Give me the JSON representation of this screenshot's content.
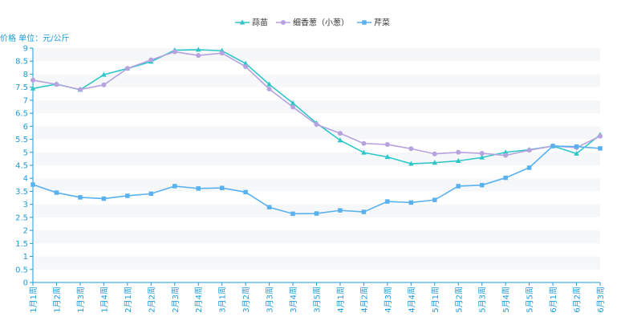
{
  "chart_data": {
    "type": "line",
    "ylabel": "价格 单位：元/公斤",
    "ylim": [
      0,
      9
    ],
    "ytick_step": 0.5,
    "grid": "horizontal-bands",
    "legend_position": "top-center",
    "categories": [
      "1月1周",
      "1月2周",
      "1月3周",
      "1月4周",
      "2月1周",
      "2月2周",
      "2月3周",
      "2月4周",
      "3月1周",
      "3月2周",
      "3月3周",
      "3月4周",
      "3月5周",
      "4月1周",
      "4月2周",
      "4月3周",
      "4月4周",
      "5月1周",
      "5月2周",
      "5月3周",
      "5月4周",
      "5月5周",
      "6月1周",
      "6月2周",
      "6月3周"
    ],
    "series": [
      {
        "name": "蒜苗",
        "color": "#2ec7c9",
        "marker": "triangle",
        "values": [
          7.45,
          7.62,
          7.4,
          7.98,
          8.22,
          8.48,
          8.92,
          8.94,
          8.9,
          8.41,
          7.61,
          6.89,
          6.12,
          5.46,
          4.99,
          4.82,
          4.56,
          4.6,
          4.67,
          4.8,
          5.0,
          5.1,
          5.24,
          4.95,
          5.67
        ]
      },
      {
        "name": "细香葱（小葱）",
        "color": "#b6a2de",
        "marker": "circle",
        "values": [
          7.77,
          7.61,
          7.41,
          7.59,
          8.22,
          8.55,
          8.86,
          8.72,
          8.81,
          8.29,
          7.43,
          6.74,
          6.07,
          5.73,
          5.34,
          5.3,
          5.14,
          4.94,
          5.0,
          4.96,
          4.88,
          5.08,
          5.24,
          5.18,
          5.62
        ]
      },
      {
        "name": "芹菜",
        "color": "#5ab1ef",
        "marker": "square",
        "values": [
          3.76,
          3.45,
          3.27,
          3.22,
          3.33,
          3.41,
          3.7,
          3.61,
          3.63,
          3.47,
          2.89,
          2.64,
          2.65,
          2.77,
          2.71,
          3.11,
          3.07,
          3.17,
          3.7,
          3.74,
          4.02,
          4.41,
          5.24,
          5.22,
          5.15
        ]
      }
    ]
  }
}
